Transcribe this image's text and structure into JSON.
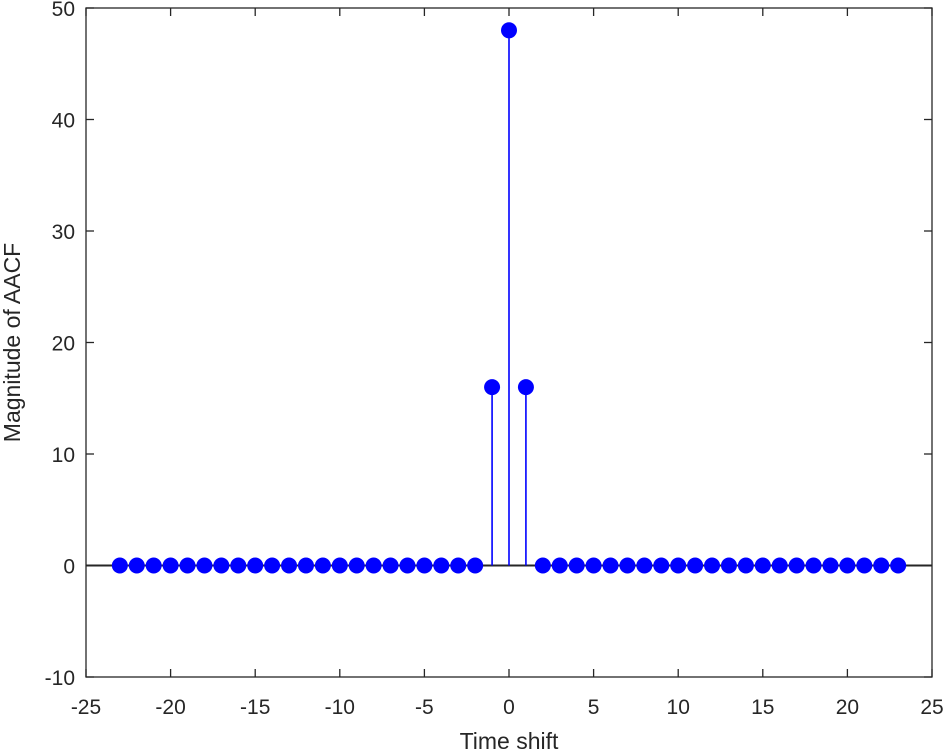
{
  "chart_data": {
    "type": "stem",
    "title": "",
    "xlabel": "Time shift",
    "ylabel": "Magnitude of AACF",
    "xlim": [
      -25,
      25
    ],
    "ylim": [
      -10,
      50
    ],
    "xticks": [
      -25,
      -20,
      -15,
      -10,
      -5,
      0,
      5,
      10,
      15,
      20,
      25
    ],
    "yticks": [
      -10,
      0,
      10,
      20,
      30,
      40,
      50
    ],
    "xtick_labels": [
      "-25",
      "-20",
      "-15",
      "-10",
      "-5",
      "0",
      "5",
      "10",
      "15",
      "20",
      "25"
    ],
    "ytick_labels": [
      "-10",
      "0",
      "10",
      "20",
      "30",
      "40",
      "50"
    ],
    "grid": false,
    "box": true,
    "baseline": 0,
    "marker": "filled-circle",
    "colors": {
      "series": "#0000ff",
      "axes": "#262626",
      "baseline": "#262626"
    },
    "series": [
      {
        "x": [
          -23,
          -22,
          -21,
          -20,
          -19,
          -18,
          -17,
          -16,
          -15,
          -14,
          -13,
          -12,
          -11,
          -10,
          -9,
          -8,
          -7,
          -6,
          -5,
          -4,
          -3,
          -2,
          -1,
          0,
          1,
          2,
          3,
          4,
          5,
          6,
          7,
          8,
          9,
          10,
          11,
          12,
          13,
          14,
          15,
          16,
          17,
          18,
          19,
          20,
          21,
          22,
          23
        ],
        "y": [
          0,
          0,
          0,
          0,
          0,
          0,
          0,
          0,
          0,
          0,
          0,
          0,
          0,
          0,
          0,
          0,
          0,
          0,
          0,
          0,
          0,
          0,
          16,
          48,
          16,
          0,
          0,
          0,
          0,
          0,
          0,
          0,
          0,
          0,
          0,
          0,
          0,
          0,
          0,
          0,
          0,
          0,
          0,
          0,
          0,
          0,
          0
        ]
      }
    ]
  }
}
